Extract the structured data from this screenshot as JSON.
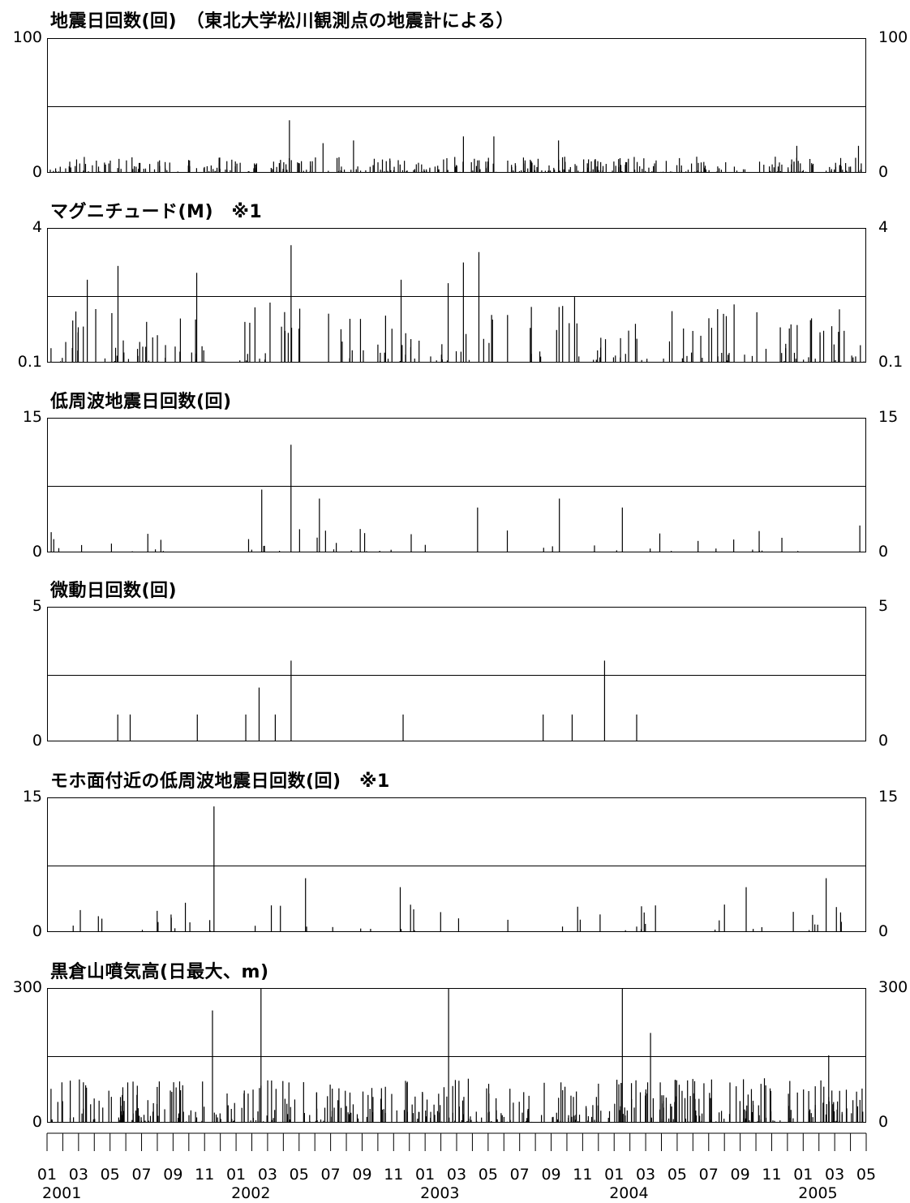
{
  "chart_data": [
    {
      "type": "bar",
      "title": "地震日回数(回)　（東北大学松川観測点の地震計による）",
      "ylim": [
        0,
        100
      ],
      "ytick_labels": [
        "100",
        "0"
      ],
      "representative_peaks": [
        {
          "x": "2002-04",
          "y": 39
        },
        {
          "x": "2002-06",
          "y": 22
        },
        {
          "x": "2002-08",
          "y": 24
        },
        {
          "x": "2003-03",
          "y": 27
        },
        {
          "x": "2003-05",
          "y": 27
        },
        {
          "x": "2003-09",
          "y": 24
        },
        {
          "x": "2004-12",
          "y": 20
        },
        {
          "x": "2005-04",
          "y": 20
        }
      ]
    },
    {
      "type": "bar",
      "title": "マグニチュード(M)　※1",
      "ylim": [
        0.1,
        4
      ],
      "ytick_labels": [
        "4",
        "0.1"
      ],
      "representative_peaks": [
        {
          "x": "2001-03",
          "y": 2.5
        },
        {
          "x": "2001-05",
          "y": 2.9
        },
        {
          "x": "2001-10",
          "y": 2.7
        },
        {
          "x": "2002-04",
          "y": 3.5
        },
        {
          "x": "2002-11",
          "y": 2.5
        },
        {
          "x": "2003-02",
          "y": 2.4
        },
        {
          "x": "2003-03",
          "y": 3.0
        },
        {
          "x": "2003-04",
          "y": 3.3
        },
        {
          "x": "2003-10",
          "y": 2.0
        }
      ]
    },
    {
      "type": "bar",
      "title": "低周波地震日回数(回)",
      "ylim": [
        0,
        15
      ],
      "ytick_labels": [
        "15",
        "0"
      ],
      "representative_peaks": [
        {
          "x": "2002-02",
          "y": 7
        },
        {
          "x": "2002-04",
          "y": 12
        },
        {
          "x": "2002-06",
          "y": 6
        },
        {
          "x": "2003-04",
          "y": 5
        },
        {
          "x": "2003-09",
          "y": 6
        },
        {
          "x": "2004-01",
          "y": 5
        },
        {
          "x": "2005-04",
          "y": 3
        }
      ]
    },
    {
      "type": "bar",
      "title": "微動日回数(回)",
      "ylim": [
        0,
        5
      ],
      "ytick_labels": [
        "5",
        "0"
      ],
      "representative_peaks": [
        {
          "x": "2001-05",
          "y": 1
        },
        {
          "x": "2001-06",
          "y": 1
        },
        {
          "x": "2001-10",
          "y": 1
        },
        {
          "x": "2002-01",
          "y": 1
        },
        {
          "x": "2002-02",
          "y": 2
        },
        {
          "x": "2002-03",
          "y": 1
        },
        {
          "x": "2002-04",
          "y": 3
        },
        {
          "x": "2002-11",
          "y": 1
        },
        {
          "x": "2003-08",
          "y": 1
        },
        {
          "x": "2003-10",
          "y": 1
        },
        {
          "x": "2003-12",
          "y": 3
        },
        {
          "x": "2004-02",
          "y": 1
        }
      ]
    },
    {
      "type": "bar",
      "title": "モホ面付近の低周波地震日回数(回)　※1",
      "ylim": [
        0,
        15
      ],
      "ytick_labels": [
        "15",
        "0"
      ],
      "representative_peaks": [
        {
          "x": "2001-11",
          "y": 14
        },
        {
          "x": "2002-05",
          "y": 6
        },
        {
          "x": "2002-11",
          "y": 5
        },
        {
          "x": "2004-09",
          "y": 5
        },
        {
          "x": "2005-02",
          "y": 6
        }
      ]
    },
    {
      "type": "bar",
      "title": "黒倉山噴気高(日最大、m)",
      "ylim": [
        0,
        300
      ],
      "ytick_labels": [
        "300",
        "0"
      ],
      "representative_peaks": [
        {
          "x": "2001-11",
          "y": 250
        },
        {
          "x": "2002-02",
          "y": 300
        },
        {
          "x": "2003-02",
          "y": 300
        },
        {
          "x": "2004-01",
          "y": 300
        },
        {
          "x": "2004-03",
          "y": 200
        },
        {
          "x": "2005-02",
          "y": 150
        }
      ]
    }
  ],
  "x_axis": {
    "month_labels": [
      "01",
      "03",
      "05",
      "07",
      "09",
      "11",
      "01",
      "03",
      "05",
      "07",
      "09",
      "11",
      "01",
      "03",
      "05",
      "07",
      "09",
      "11",
      "01",
      "03",
      "05",
      "07",
      "09",
      "11",
      "01",
      "03",
      "05"
    ],
    "year_labels": [
      "2001",
      "2002",
      "2003",
      "2004",
      "2005"
    ]
  }
}
